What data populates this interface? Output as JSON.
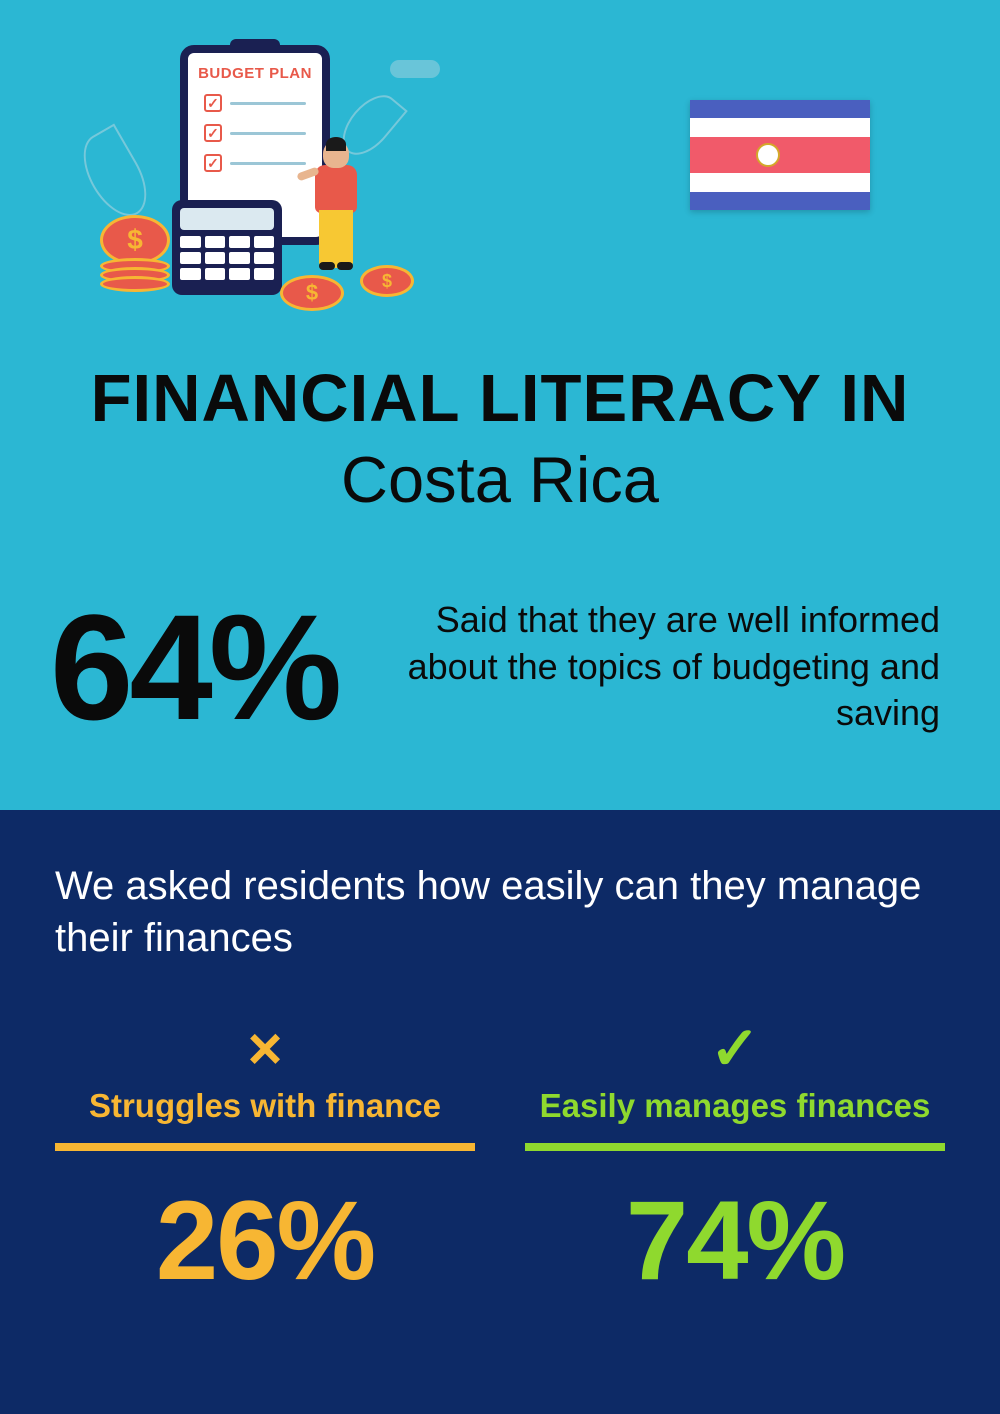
{
  "illustration": {
    "clipboard_title": "BUDGET PLAN"
  },
  "flag": {
    "stripe_colors": [
      "#4a5fbf",
      "#ffffff",
      "#f15a6a",
      "#ffffff",
      "#4a5fbf"
    ]
  },
  "title": {
    "line1": "FINANCIAL LITERACY IN",
    "line2": "Costa Rica"
  },
  "main_stat": {
    "percent": "64%",
    "description": "Said that they are well informed about the topics of budgeting and saving"
  },
  "question": "We asked residents how easily can they manage their finances",
  "comparison": {
    "struggles": {
      "icon": "×",
      "label": "Struggles with finance",
      "percent": "26%",
      "color": "#f7b633"
    },
    "manages": {
      "icon": "✓",
      "label": "Easily manages finances",
      "percent": "74%",
      "color": "#8fd92e"
    }
  },
  "colors": {
    "top_bg": "#2bb7d3",
    "bottom_bg": "#0d2a66",
    "text_dark": "#0a0a0a",
    "text_light": "#ffffff"
  }
}
